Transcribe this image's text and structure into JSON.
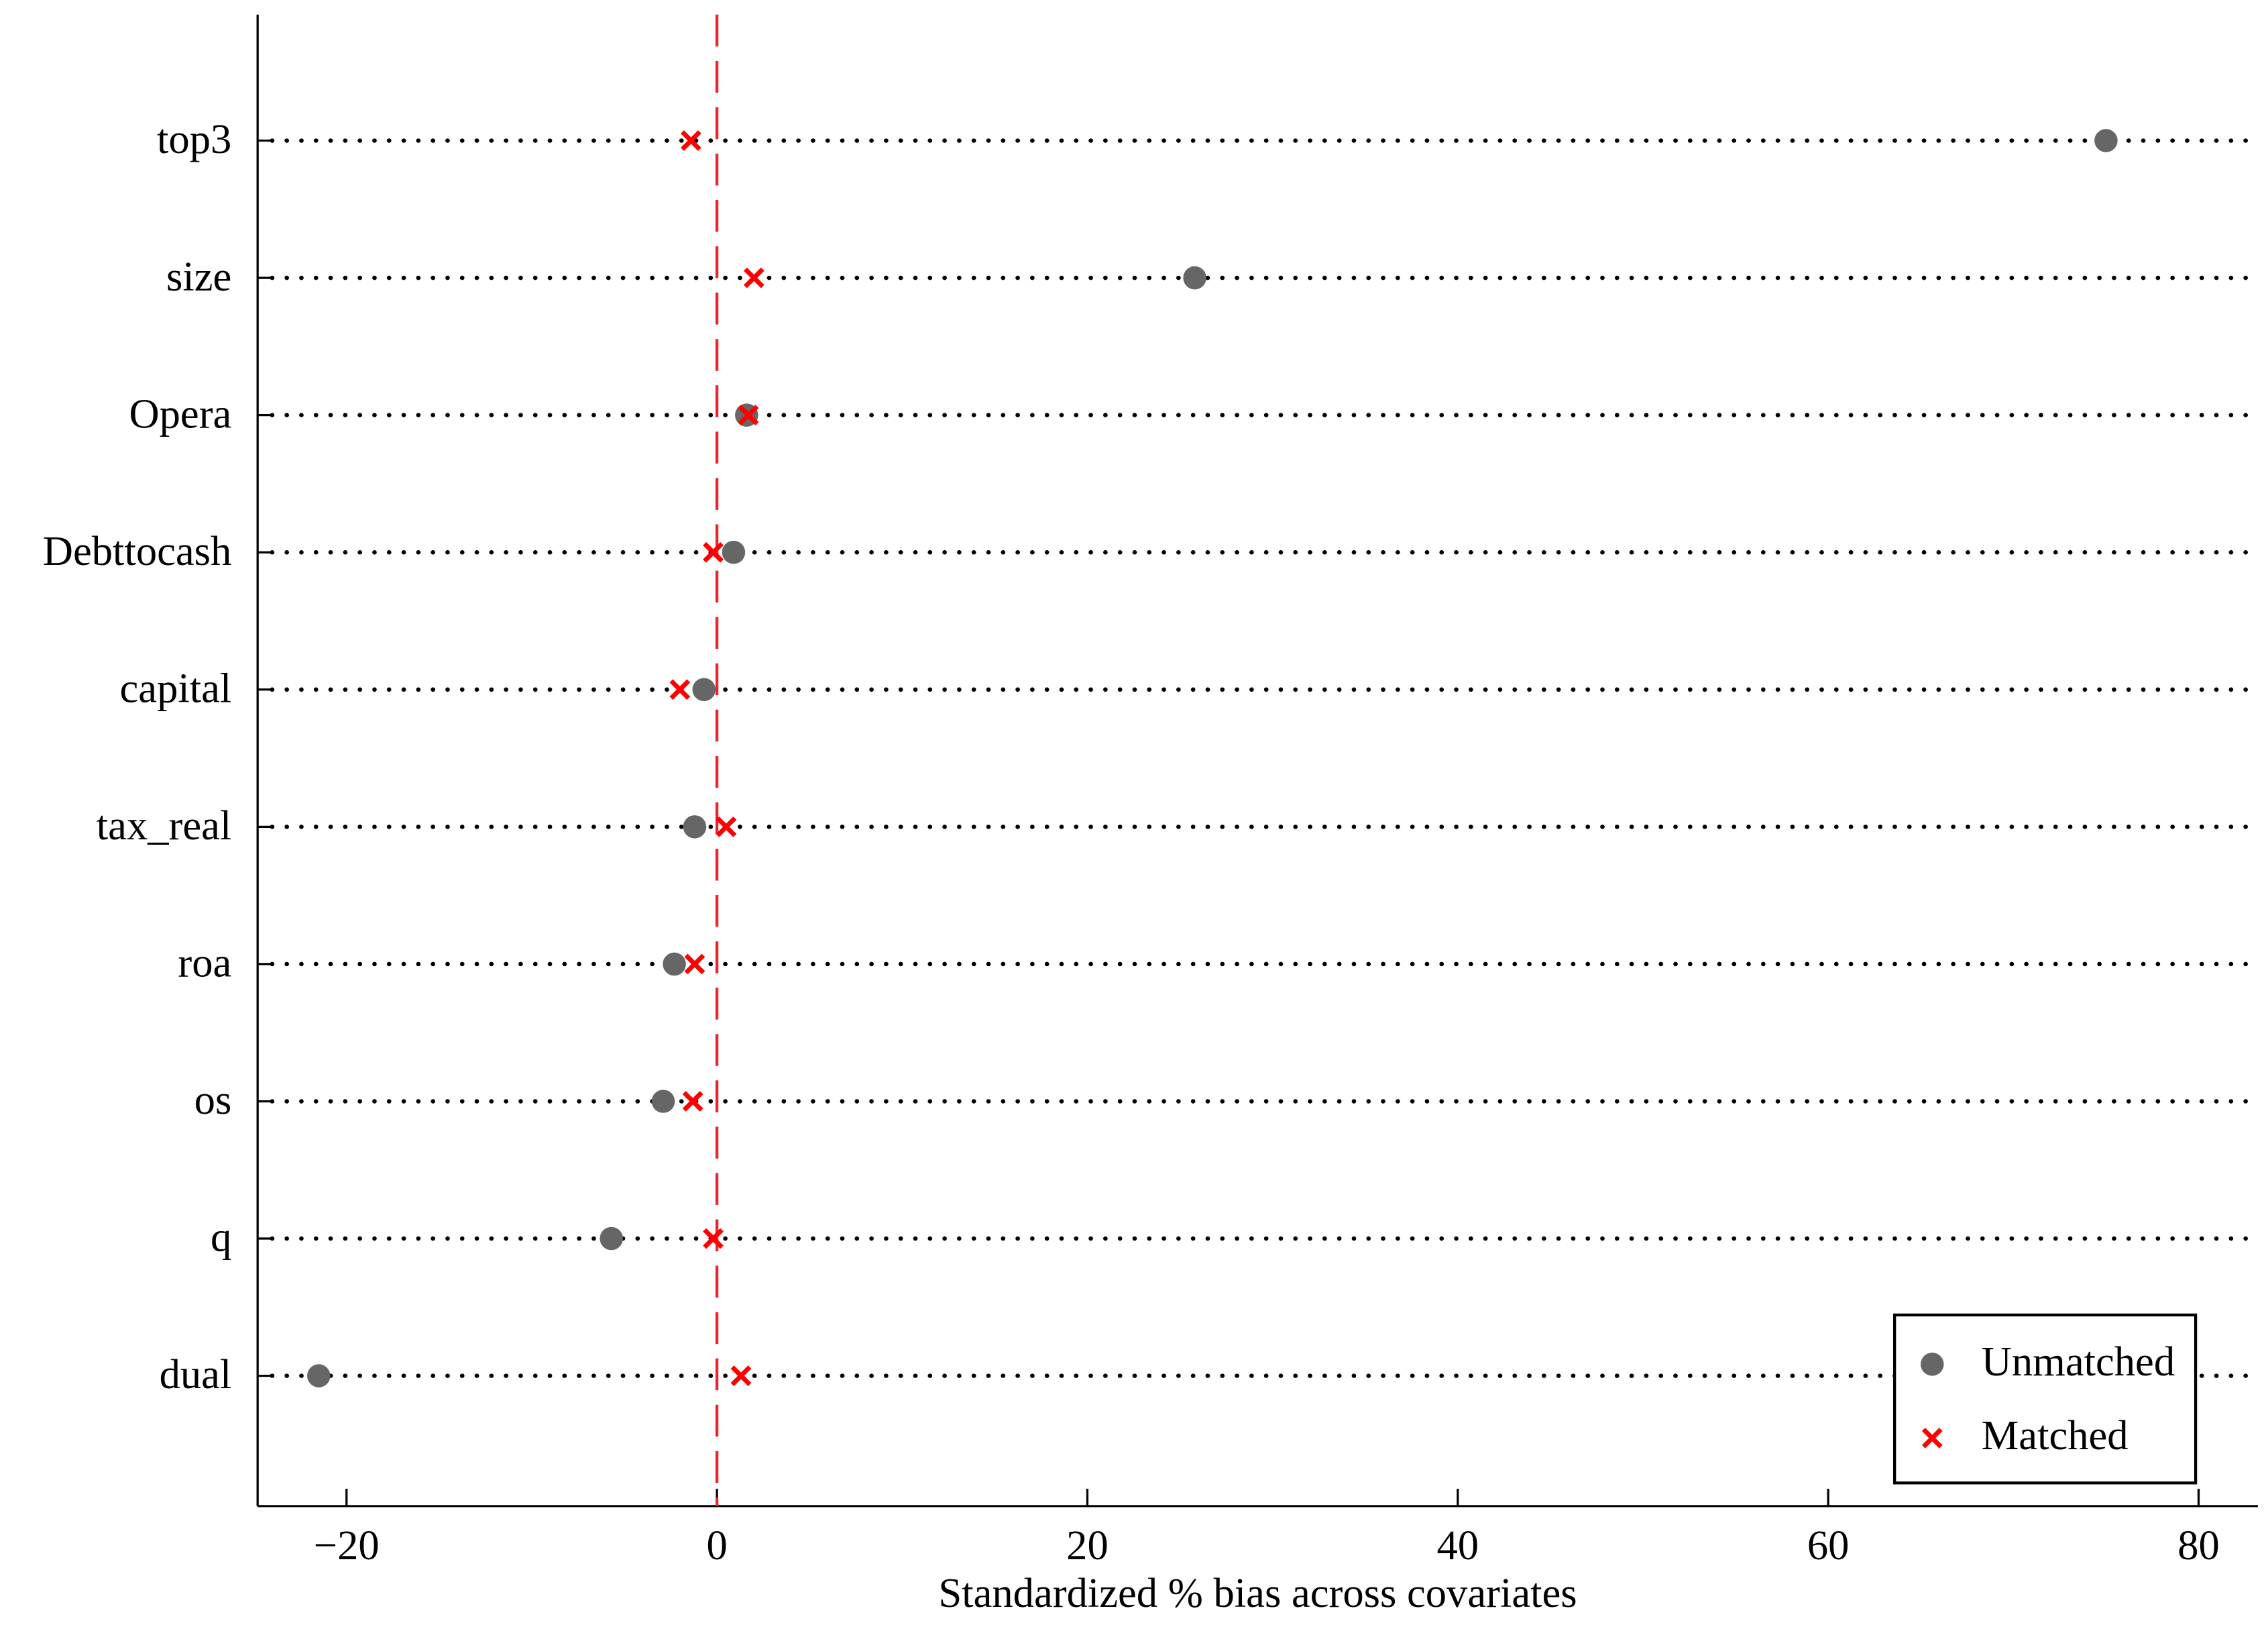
{
  "chart_data": {
    "type": "dot",
    "xlabel": "Standardized % bias across covariates",
    "categories": [
      "top3",
      "size",
      "Opera",
      "Debttocash",
      "capital",
      "tax_real",
      "roa",
      "os",
      "q",
      "dual"
    ],
    "series": [
      {
        "name": "Unmatched",
        "color": "#666666",
        "marker": "circle",
        "values": [
          75.0,
          25.8,
          1.6,
          0.9,
          -0.7,
          -1.2,
          -2.3,
          -2.9,
          -5.7,
          -21.5
        ]
      },
      {
        "name": "Matched",
        "color": "#ff0000",
        "marker": "x",
        "values": [
          -1.4,
          2.0,
          1.7,
          -0.2,
          -2.0,
          0.5,
          -1.2,
          -1.3,
          -0.2,
          1.3
        ]
      }
    ],
    "xlim": [
      -24.8,
      83.2
    ],
    "xticks": [
      {
        "value": -20,
        "label": "−20"
      },
      0,
      20,
      40,
      60,
      80
    ],
    "reference_line": 0,
    "legend": "lower right"
  }
}
